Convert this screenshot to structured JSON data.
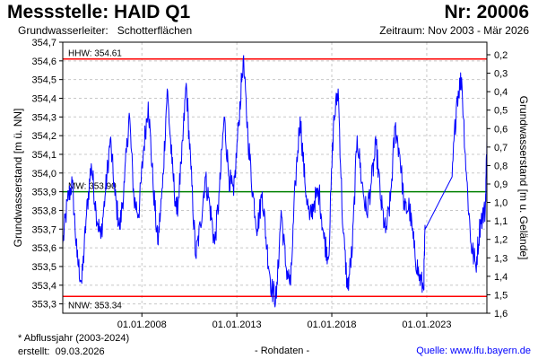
{
  "header": {
    "station": "Messstelle: HAID Q1",
    "number": "Nr: 20006",
    "aquifer_label": "Grundwasserleiter:",
    "aquifer_value": "Schotterflächen",
    "period": "Zeitraum: Nov 2003 - Mär 2026"
  },
  "footer": {
    "footnote": "* Abflussjahr (2003-2024)",
    "created_label": "erstellt:",
    "created_value": "09.03.2026",
    "data_kind": "- Rohdaten -",
    "source": "Quelle: www.lfu.bayern.de"
  },
  "colors": {
    "series": "#0000ff",
    "extreme_lines": "#ff0000",
    "mean_line": "#008000",
    "grid": "#c8c8c8"
  },
  "chart_data": {
    "type": "line",
    "x_start": "2003-11",
    "x_end": "2026-03",
    "ylabel": "Grundwasserstand [m ü. NN]",
    "ylim": [
      353.25,
      354.7
    ],
    "y_ticks": [
      "353,3",
      "353,4",
      "353,5",
      "353,6",
      "353,7",
      "353,8",
      "353,9",
      "354,0",
      "354,1",
      "354,2",
      "354,3",
      "354,4",
      "354,5",
      "354,6",
      "354,7"
    ],
    "y2label": "Grundwasserstand [m u. Gelände]",
    "y2_ticks": [
      "0,2",
      "0,3",
      "0,4",
      "0,5",
      "0,6",
      "0,7",
      "0,8",
      "0,9",
      "1,0",
      "1,1",
      "1,2",
      "1,3",
      "1,4",
      "1,5",
      "1,6"
    ],
    "x_ticks": [
      "01.01.2008",
      "01.01.2013",
      "01.01.2018",
      "01.01.2023"
    ],
    "grid": true,
    "reference_lines": [
      {
        "label": "HHW: 354.61",
        "value": 354.61
      },
      {
        "label": "MW: 353.90",
        "value": 353.9
      },
      {
        "label": "NNW: 353.34",
        "value": 353.34
      }
    ],
    "series": [
      {
        "x": [
          "2003-11",
          "2004-02",
          "2004-05",
          "2004-08",
          "2004-11",
          "2005-02",
          "2005-05",
          "2005-08",
          "2005-11",
          "2006-02",
          "2006-05",
          "2006-08",
          "2006-11",
          "2007-02",
          "2007-05",
          "2007-08",
          "2007-11",
          "2008-02",
          "2008-05",
          "2008-08",
          "2008-11",
          "2009-02",
          "2009-05",
          "2009-08",
          "2009-11",
          "2010-02",
          "2010-05",
          "2010-08",
          "2010-11",
          "2011-02",
          "2011-05",
          "2011-08",
          "2011-11",
          "2012-02",
          "2012-05",
          "2012-08",
          "2012-11",
          "2013-02",
          "2013-05",
          "2013-08",
          "2013-11",
          "2014-02",
          "2014-05",
          "2014-08",
          "2014-11",
          "2015-02",
          "2015-05",
          "2015-08",
          "2015-11",
          "2016-02",
          "2016-05",
          "2016-08",
          "2016-11",
          "2017-02",
          "2017-05",
          "2017-08",
          "2017-11",
          "2018-02",
          "2018-05",
          "2018-08",
          "2018-11",
          "2019-02",
          "2019-05",
          "2019-08",
          "2019-11",
          "2020-02",
          "2020-05",
          "2020-08",
          "2020-11",
          "2021-02",
          "2021-05",
          "2021-08",
          "2021-11",
          "2022-02",
          "2022-05",
          "2022-08",
          "2022-11",
          "2022-12",
          "2024-05",
          "2024-08",
          "2024-11",
          "2025-02",
          "2025-05",
          "2025-08",
          "2025-11",
          "2026-02",
          "2026-03"
        ],
        "values": [
          353.62,
          353.85,
          353.95,
          353.55,
          353.41,
          353.78,
          354.05,
          353.8,
          353.65,
          353.9,
          354.18,
          353.88,
          353.7,
          353.95,
          354.32,
          353.86,
          353.78,
          354.12,
          354.38,
          353.95,
          353.62,
          353.92,
          354.45,
          354.05,
          353.78,
          354.05,
          354.48,
          354.02,
          353.55,
          353.72,
          353.98,
          353.82,
          353.62,
          353.9,
          354.3,
          353.98,
          353.88,
          354.25,
          354.61,
          354.2,
          353.9,
          353.7,
          353.9,
          353.6,
          353.38,
          353.33,
          353.8,
          353.5,
          353.4,
          353.95,
          354.3,
          353.95,
          353.75,
          353.85,
          353.9,
          353.65,
          353.55,
          354.25,
          354.45,
          353.7,
          353.38,
          353.6,
          354.2,
          353.95,
          353.78,
          353.95,
          354.15,
          353.85,
          353.68,
          353.85,
          354.25,
          354.1,
          353.8,
          353.82,
          353.6,
          353.45,
          353.38,
          353.7,
          353.98,
          354.4,
          354.51,
          354.0,
          353.62,
          353.5,
          353.75,
          353.8,
          354.18
        ]
      }
    ]
  }
}
